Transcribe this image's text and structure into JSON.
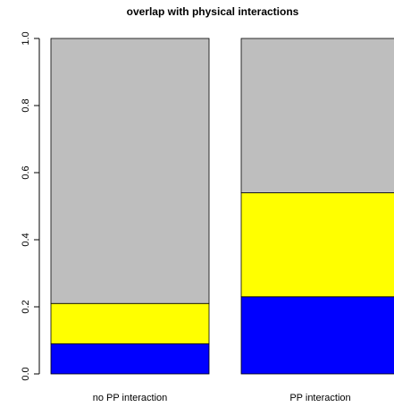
{
  "chart_data": {
    "type": "bar",
    "stacked": true,
    "title": "overlap with physical interactions",
    "xlabel": "",
    "ylabel": "",
    "ylim": [
      0,
      1
    ],
    "yticks": [
      "0.0",
      "0.2",
      "0.4",
      "0.6",
      "0.8",
      "1.0"
    ],
    "categories": [
      "no PP interaction",
      "PP interaction"
    ],
    "series": [
      {
        "color": "#0000ff",
        "values": [
          0.09,
          0.23
        ]
      },
      {
        "color": "#ffff00",
        "values": [
          0.12,
          0.31
        ]
      },
      {
        "color": "#bebebe",
        "values": [
          0.79,
          0.46
        ]
      }
    ],
    "grid": false,
    "legend": "none"
  }
}
